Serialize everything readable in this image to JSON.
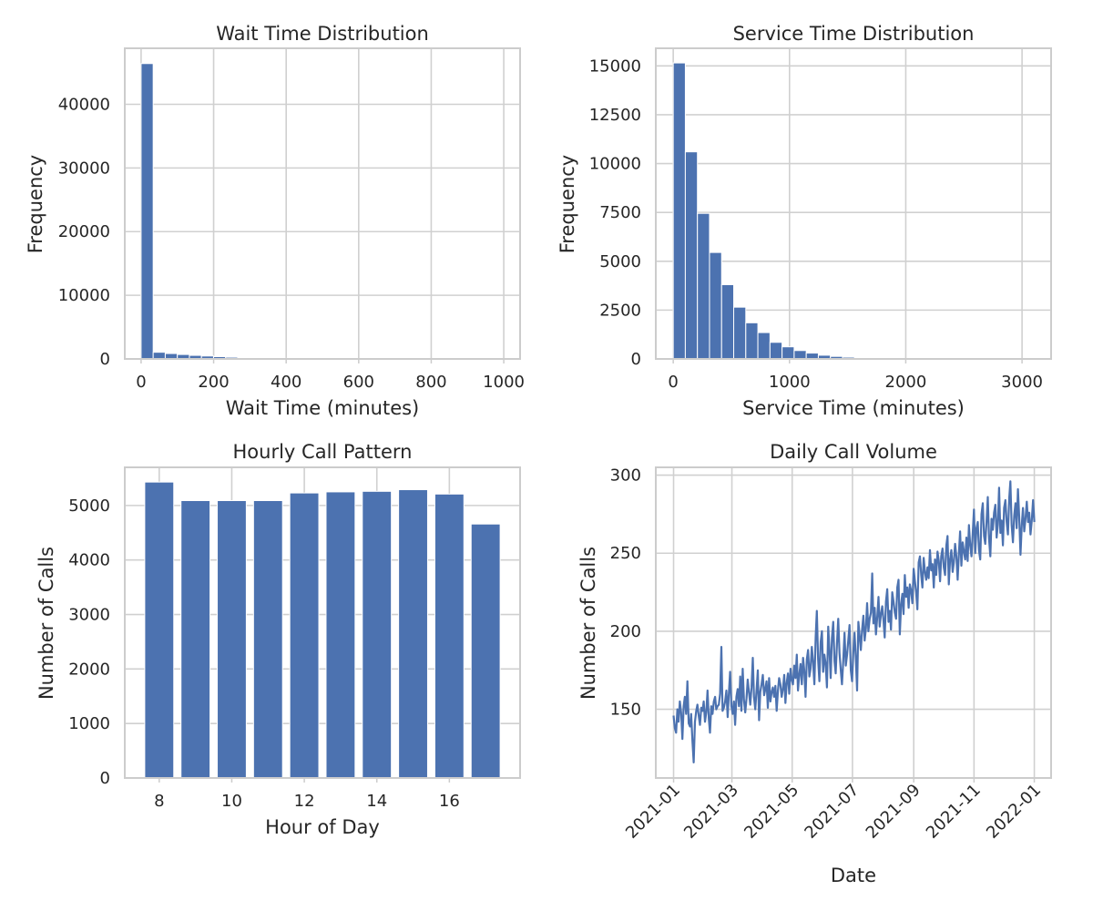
{
  "chart_data": [
    {
      "id": "wait",
      "type": "bar",
      "title": "Wait Time Distribution",
      "xlabel": "Wait Time (minutes)",
      "ylabel": "Frequency",
      "xlim": [
        -45,
        1045
      ],
      "ylim": [
        0,
        48800
      ],
      "xticks": [
        0,
        200,
        400,
        600,
        800,
        1000
      ],
      "yticks": [
        0,
        10000,
        20000,
        30000,
        40000
      ],
      "bin_width": 33.3,
      "bin_start": 0,
      "values": [
        46400,
        1050,
        850,
        700,
        560,
        460,
        360,
        270,
        200,
        150,
        110,
        85,
        65,
        50,
        40,
        30,
        25,
        20,
        15,
        12,
        10,
        8,
        6,
        5,
        4,
        3,
        2,
        2,
        1,
        1
      ],
      "grid": true
    },
    {
      "id": "service",
      "type": "bar",
      "title": "Service Time Distribution",
      "xlabel": "Service Time (minutes)",
      "ylabel": "Frequency",
      "xlim": [
        -150,
        3250
      ],
      "ylim": [
        0,
        15900
      ],
      "xticks": [
        0,
        1000,
        2000,
        3000
      ],
      "yticks": [
        0,
        2500,
        5000,
        7500,
        10000,
        12500,
        15000
      ],
      "bin_width": 104,
      "bin_start": 0,
      "values": [
        15150,
        10600,
        7450,
        5450,
        3800,
        2650,
        1850,
        1350,
        850,
        620,
        430,
        300,
        190,
        130,
        90,
        60,
        40,
        25,
        15,
        10,
        8,
        5,
        4,
        3,
        2,
        2,
        1,
        1,
        1,
        1
      ],
      "grid": true
    },
    {
      "id": "hourly",
      "type": "bar",
      "title": "Hourly Call Pattern",
      "xlabel": "Hour of Day",
      "ylabel": "Number of Calls",
      "xlim": [
        7.05,
        17.95
      ],
      "ylim": [
        0,
        5700
      ],
      "xticks": [
        8,
        10,
        12,
        14,
        16
      ],
      "yticks": [
        0,
        1000,
        2000,
        3000,
        4000,
        5000
      ],
      "categories": [
        8,
        9,
        10,
        11,
        12,
        13,
        14,
        15,
        16,
        17
      ],
      "values": [
        5430,
        5090,
        5090,
        5090,
        5230,
        5250,
        5260,
        5290,
        5210,
        4660
      ],
      "bar_width": 0.8,
      "grid": true
    },
    {
      "id": "daily",
      "type": "line",
      "title": "Daily Call Volume",
      "xlabel": "Date",
      "ylabel": "Number of Calls",
      "start_date": "2021-01-01",
      "xlim": [
        "2020-12-14",
        "2022-01-18"
      ],
      "ylim": [
        106,
        305
      ],
      "xticks": [
        "2021-01",
        "2021-03",
        "2021-05",
        "2021-07",
        "2021-09",
        "2021-11",
        "2022-01"
      ],
      "xtick_dates": [
        "2021-01-01",
        "2021-03-01",
        "2021-05-01",
        "2021-07-01",
        "2021-09-01",
        "2021-11-01",
        "2022-01-01"
      ],
      "yticks": [
        150,
        200,
        250,
        300
      ],
      "values": [
        146,
        138,
        135,
        150,
        142,
        155,
        148,
        131,
        152,
        158,
        147,
        168,
        141,
        139,
        147,
        130,
        116,
        142,
        149,
        153,
        146,
        140,
        151,
        149,
        155,
        142,
        148,
        162,
        144,
        135,
        152,
        147,
        155,
        158,
        150,
        152,
        153,
        160,
        190,
        149,
        151,
        155,
        162,
        145,
        160,
        174,
        152,
        147,
        155,
        140,
        158,
        163,
        152,
        171,
        149,
        176,
        156,
        148,
        157,
        169,
        161,
        153,
        164,
        183,
        158,
        150,
        162,
        175,
        143,
        161,
        166,
        172,
        159,
        163,
        168,
        151,
        170,
        155,
        161,
        164,
        158,
        165,
        149,
        162,
        170,
        166,
        158,
        163,
        172,
        154,
        167,
        173,
        160,
        176,
        169,
        166,
        178,
        170,
        185,
        162,
        172,
        179,
        166,
        183,
        175,
        158,
        182,
        188,
        171,
        176,
        190,
        180,
        166,
        196,
        213,
        182,
        168,
        193,
        200,
        174,
        185,
        179,
        164,
        203,
        189,
        170,
        196,
        206,
        181,
        173,
        192,
        208,
        186,
        175,
        166,
        181,
        199,
        178,
        185,
        194,
        204,
        175,
        168,
        187,
        199,
        183,
        162,
        206,
        197,
        188,
        201,
        210,
        194,
        202,
        218,
        200,
        208,
        212,
        237,
        205,
        215,
        198,
        209,
        222,
        203,
        211,
        216,
        207,
        196,
        219,
        227,
        206,
        213,
        201,
        225,
        219,
        212,
        208,
        228,
        233,
        198,
        217,
        224,
        211,
        236,
        222,
        228,
        215,
        230,
        226,
        218,
        240,
        232,
        225,
        214,
        244,
        248,
        236,
        228,
        247,
        238,
        233,
        241,
        234,
        252,
        239,
        243,
        228,
        246,
        236,
        251,
        245,
        232,
        248,
        253,
        241,
        236,
        255,
        261,
        230,
        246,
        252,
        238,
        244,
        256,
        248,
        233,
        250,
        264,
        242,
        257,
        251,
        246,
        260,
        245,
        268,
        255,
        248,
        262,
        278,
        250,
        266,
        270,
        252,
        246,
        275,
        282,
        261,
        256,
        270,
        286,
        259,
        248,
        272,
        265,
        276,
        281,
        260,
        268,
        292,
        263,
        271,
        255,
        279,
        284,
        270,
        262,
        285,
        296,
        268,
        257,
        274,
        282,
        266,
        291,
        273,
        249,
        268,
        279,
        264,
        272,
        283,
        270,
        276,
        262,
        271,
        284,
        270
      ],
      "grid": true
    }
  ]
}
